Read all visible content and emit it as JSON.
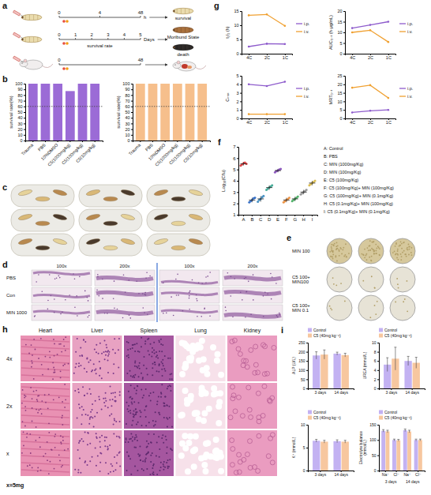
{
  "schematic": {
    "panel": "a",
    "timelines": [
      {
        "ticks": [
          0,
          4,
          48
        ],
        "unit": "h"
      },
      {
        "ticks": [
          0,
          1,
          2,
          3,
          4,
          5
        ],
        "unit": "Days",
        "caption": "survival rate"
      },
      {
        "ticks": [
          0,
          48
        ]
      }
    ],
    "states": [
      "survival",
      "Moribund State",
      "death"
    ]
  },
  "photos": {
    "panel": "c"
  },
  "histology": {
    "panel": "d",
    "columns": [
      "100x",
      "200x",
      "100x",
      "200x"
    ],
    "rows": [
      "PBS",
      "Con",
      "MIN 1000"
    ]
  },
  "plates": {
    "panel": "e",
    "rows": [
      "MIN 100",
      "C5 100+ MIN100",
      "C5 100+ MIN 0.1"
    ]
  },
  "tissues": {
    "panel": "h",
    "columns": [
      "Heart",
      "Liver",
      "Spleen",
      "Lung",
      "Kidney"
    ],
    "rows": [
      "4x",
      "2x",
      "x"
    ],
    "note": "x=5mg"
  },
  "chart_data": [
    {
      "panel": "b",
      "type": "bar",
      "ylabel": "survival rate(%)",
      "categories": [
        "Trauma",
        "PBS",
        "10%DMSO",
        "C5(1000mg/kg)",
        "C5(100mg/kg)",
        "C5(10mg/kg)"
      ],
      "values": [
        100,
        100,
        100,
        87,
        100,
        100
      ],
      "color": "#9b6bd6",
      "ylim": [
        0,
        100
      ],
      "yticks": [
        0,
        10,
        20,
        30,
        40,
        50,
        60,
        70,
        80,
        90,
        100
      ],
      "reference_line": 60
    },
    {
      "type": "bar",
      "ylabel": "survival rate(%)",
      "categories": [
        "Trauma",
        "PBS",
        "10%DMSO",
        "C5(1000mg/kg)",
        "C5(100mg/kg)",
        "C5(10mg/kg)"
      ],
      "values": [
        100,
        100,
        100,
        100,
        100,
        100
      ],
      "color": "#f6bf8c",
      "ylim": [
        0,
        100
      ],
      "yticks": [
        0,
        10,
        20,
        30,
        40,
        50,
        60,
        70,
        80,
        90,
        100
      ],
      "reference_line": 60
    },
    {
      "panel": "f",
      "type": "dot",
      "ylabel": "Log₁₀(Cfu)",
      "categories": [
        "A",
        "B",
        "C",
        "D",
        "E",
        "F",
        "G",
        "H",
        "I"
      ],
      "category_names": [
        "A: Control",
        "B: PBS",
        "C: MIN (1000mg/Kg)",
        "D: MIN (100mg/Kg)",
        "E: C5 (100mg/Kg)",
        "F: C5 (100mg/Kg)+ MIN (100mg/Kg)",
        "G: C5 (100mg/Kg)+ MIN (0.1mg/Kg)",
        "H: C5 (0.1mg/Kg)+ MIN (100mg/Kg)",
        "I: C5 (0.1mg/Kg)+ MIN (0.1mg/Kg)"
      ],
      "values": [
        5.5,
        2.3,
        2.4,
        3.4,
        4.9,
        2.3,
        2.4,
        3.0,
        3.8
      ],
      "errors": [
        0.15,
        0.2,
        0.25,
        0.2,
        0.15,
        0.2,
        0.2,
        0.2,
        0.2
      ],
      "points": [
        [
          5.35,
          5.45,
          5.55,
          5.6,
          5.5
        ],
        [
          2.1,
          2.2,
          2.3,
          2.45,
          2.5
        ],
        [
          2.15,
          2.3,
          2.4,
          2.55,
          2.65
        ],
        [
          3.2,
          3.3,
          3.4,
          3.5,
          3.6
        ],
        [
          4.75,
          4.85,
          4.9,
          5.0,
          5.05
        ],
        [
          2.1,
          2.2,
          2.3,
          2.4,
          2.5
        ],
        [
          2.2,
          2.3,
          2.4,
          2.5,
          2.6
        ],
        [
          2.8,
          2.9,
          3.0,
          3.1,
          3.2
        ],
        [
          3.6,
          3.7,
          3.8,
          3.9,
          4.0
        ]
      ],
      "colors": [
        "#d62728",
        "#1f5fbf",
        "#2c7fb8",
        "#2ca089",
        "#7b3fb5",
        "#e8842c",
        "#3aa655",
        "#8c8c8c",
        "#d4b23a"
      ],
      "ylim": [
        1,
        7
      ],
      "yticks": [
        1,
        2,
        3,
        4,
        5,
        6,
        7
      ]
    },
    {
      "panel": "g",
      "type": "line",
      "ylabel": "t₁/₂ (h)",
      "categories": [
        "4C",
        "2C",
        "1C"
      ],
      "series": [
        {
          "name": "i.p.",
          "color": "#8e5ccc",
          "values": [
            2.5,
            3.5,
            3.4
          ]
        },
        {
          "name": "i.v.",
          "color": "#f0a030",
          "values": [
            13.5,
            13.8,
            9.8
          ]
        }
      ],
      "ylim": [
        0,
        15
      ],
      "yticks": [
        0,
        5,
        10,
        15
      ],
      "legend": "right"
    },
    {
      "type": "line",
      "ylabel": "AUC₀₋ₜ (h·μg/mL)",
      "categories": [
        "4C",
        "2C",
        "1C"
      ],
      "series": [
        {
          "name": "i.p.",
          "color": "#8e5ccc",
          "values": [
            12,
            13.5,
            15
          ]
        },
        {
          "name": "i.v.",
          "color": "#f0a030",
          "values": [
            10,
            11,
            5.5
          ]
        }
      ],
      "ylim": [
        0,
        20
      ],
      "yticks": [
        0,
        5,
        10,
        15,
        20
      ],
      "legend": "right"
    },
    {
      "type": "line",
      "ylabel": "Cₘₐₓ",
      "categories": [
        "4C",
        "2C",
        "1C"
      ],
      "series": [
        {
          "name": "i.p.",
          "color": "#8e5ccc",
          "values": [
            4,
            3.8,
            4.3
          ]
        },
        {
          "name": "i.v.",
          "color": "#f0a030",
          "values": [
            0.5,
            0.5,
            0.5
          ]
        }
      ],
      "ylim": [
        0,
        5
      ],
      "yticks": [
        0,
        1,
        2,
        3,
        4,
        5
      ],
      "legend": "right"
    },
    {
      "type": "line",
      "ylabel": "MRT₀₋ₜ",
      "categories": [
        "4C",
        "2C",
        "1C"
      ],
      "series": [
        {
          "name": "i.p.",
          "color": "#8e5ccc",
          "values": [
            3.5,
            4.5,
            5
          ]
        },
        {
          "name": "i.v.",
          "color": "#f0a030",
          "values": [
            18,
            19.5,
            12
          ]
        }
      ],
      "ylim": [
        0,
        25
      ],
      "yticks": [
        0,
        5,
        10,
        15,
        20,
        25
      ],
      "legend": "right"
    },
    {
      "panel": "i",
      "type": "bar",
      "ylabel": "ALP (U/L)",
      "categories": [
        "3 days",
        "14 days"
      ],
      "series": [
        {
          "name": "Control",
          "color": "#c3b2f2",
          "values": [
            180,
            190
          ],
          "errors": [
            20,
            8
          ]
        },
        {
          "name": "C5 (40mg kg⁻¹)",
          "color": "#f7c79f",
          "values": [
            185,
            182
          ],
          "errors": [
            25,
            10
          ]
        }
      ],
      "ylim": [
        0,
        250
      ],
      "yticks": [
        0,
        50,
        100,
        150,
        200,
        250
      ],
      "legend": "top"
    },
    {
      "type": "bar",
      "ylabel": "UREA (mmol/L)",
      "categories": [
        "3 days",
        "14 days"
      ],
      "series": [
        {
          "name": "Control",
          "color": "#c3b2f2",
          "values": [
            5.2,
            6.0
          ],
          "errors": [
            1.5,
            1.0
          ]
        },
        {
          "name": "C5 (40mg kg⁻¹)",
          "color": "#f7c79f",
          "values": [
            6.5,
            5.6
          ],
          "errors": [
            2.5,
            1.2
          ]
        }
      ],
      "ylim": [
        0,
        10
      ],
      "yticks": [
        0,
        2,
        4,
        6,
        8,
        10
      ],
      "legend": "top"
    },
    {
      "type": "bar",
      "ylabel": "K⁺ (mmol/L)",
      "categories": [
        "3 days",
        "14 days"
      ],
      "series": [
        {
          "name": "Control",
          "color": "#c3b2f2",
          "values": [
            6.5,
            6.4
          ],
          "errors": [
            0.3,
            0.3
          ]
        },
        {
          "name": "C5 (40mg kg⁻¹)",
          "color": "#f7c79f",
          "values": [
            6.3,
            6.3
          ],
          "errors": [
            0.3,
            0.3
          ]
        }
      ],
      "ylim": [
        0,
        10
      ],
      "yticks": [
        0,
        5,
        10
      ],
      "legend": "top"
    },
    {
      "type": "bar",
      "ylabel": "Electrolyte balance (mmol/L)",
      "categories": [
        "Na⁺",
        "Cl⁻",
        "Na⁺",
        "Cl⁻"
      ],
      "category_groups": [
        "3 days",
        "14 days"
      ],
      "series": [
        {
          "name": "Control",
          "color": "#c3b2f2",
          "values": [
            130,
            100,
            132,
            100
          ],
          "errors": [
            4,
            3,
            4,
            3
          ]
        },
        {
          "name": "C5 (40mg kg⁻¹)",
          "color": "#f7c79f",
          "values": [
            128,
            99,
            128,
            100
          ],
          "errors": [
            4,
            3,
            4,
            3
          ]
        }
      ],
      "ylim": [
        0,
        150
      ],
      "yticks": [
        0,
        50,
        100,
        150
      ],
      "legend": "top"
    }
  ]
}
